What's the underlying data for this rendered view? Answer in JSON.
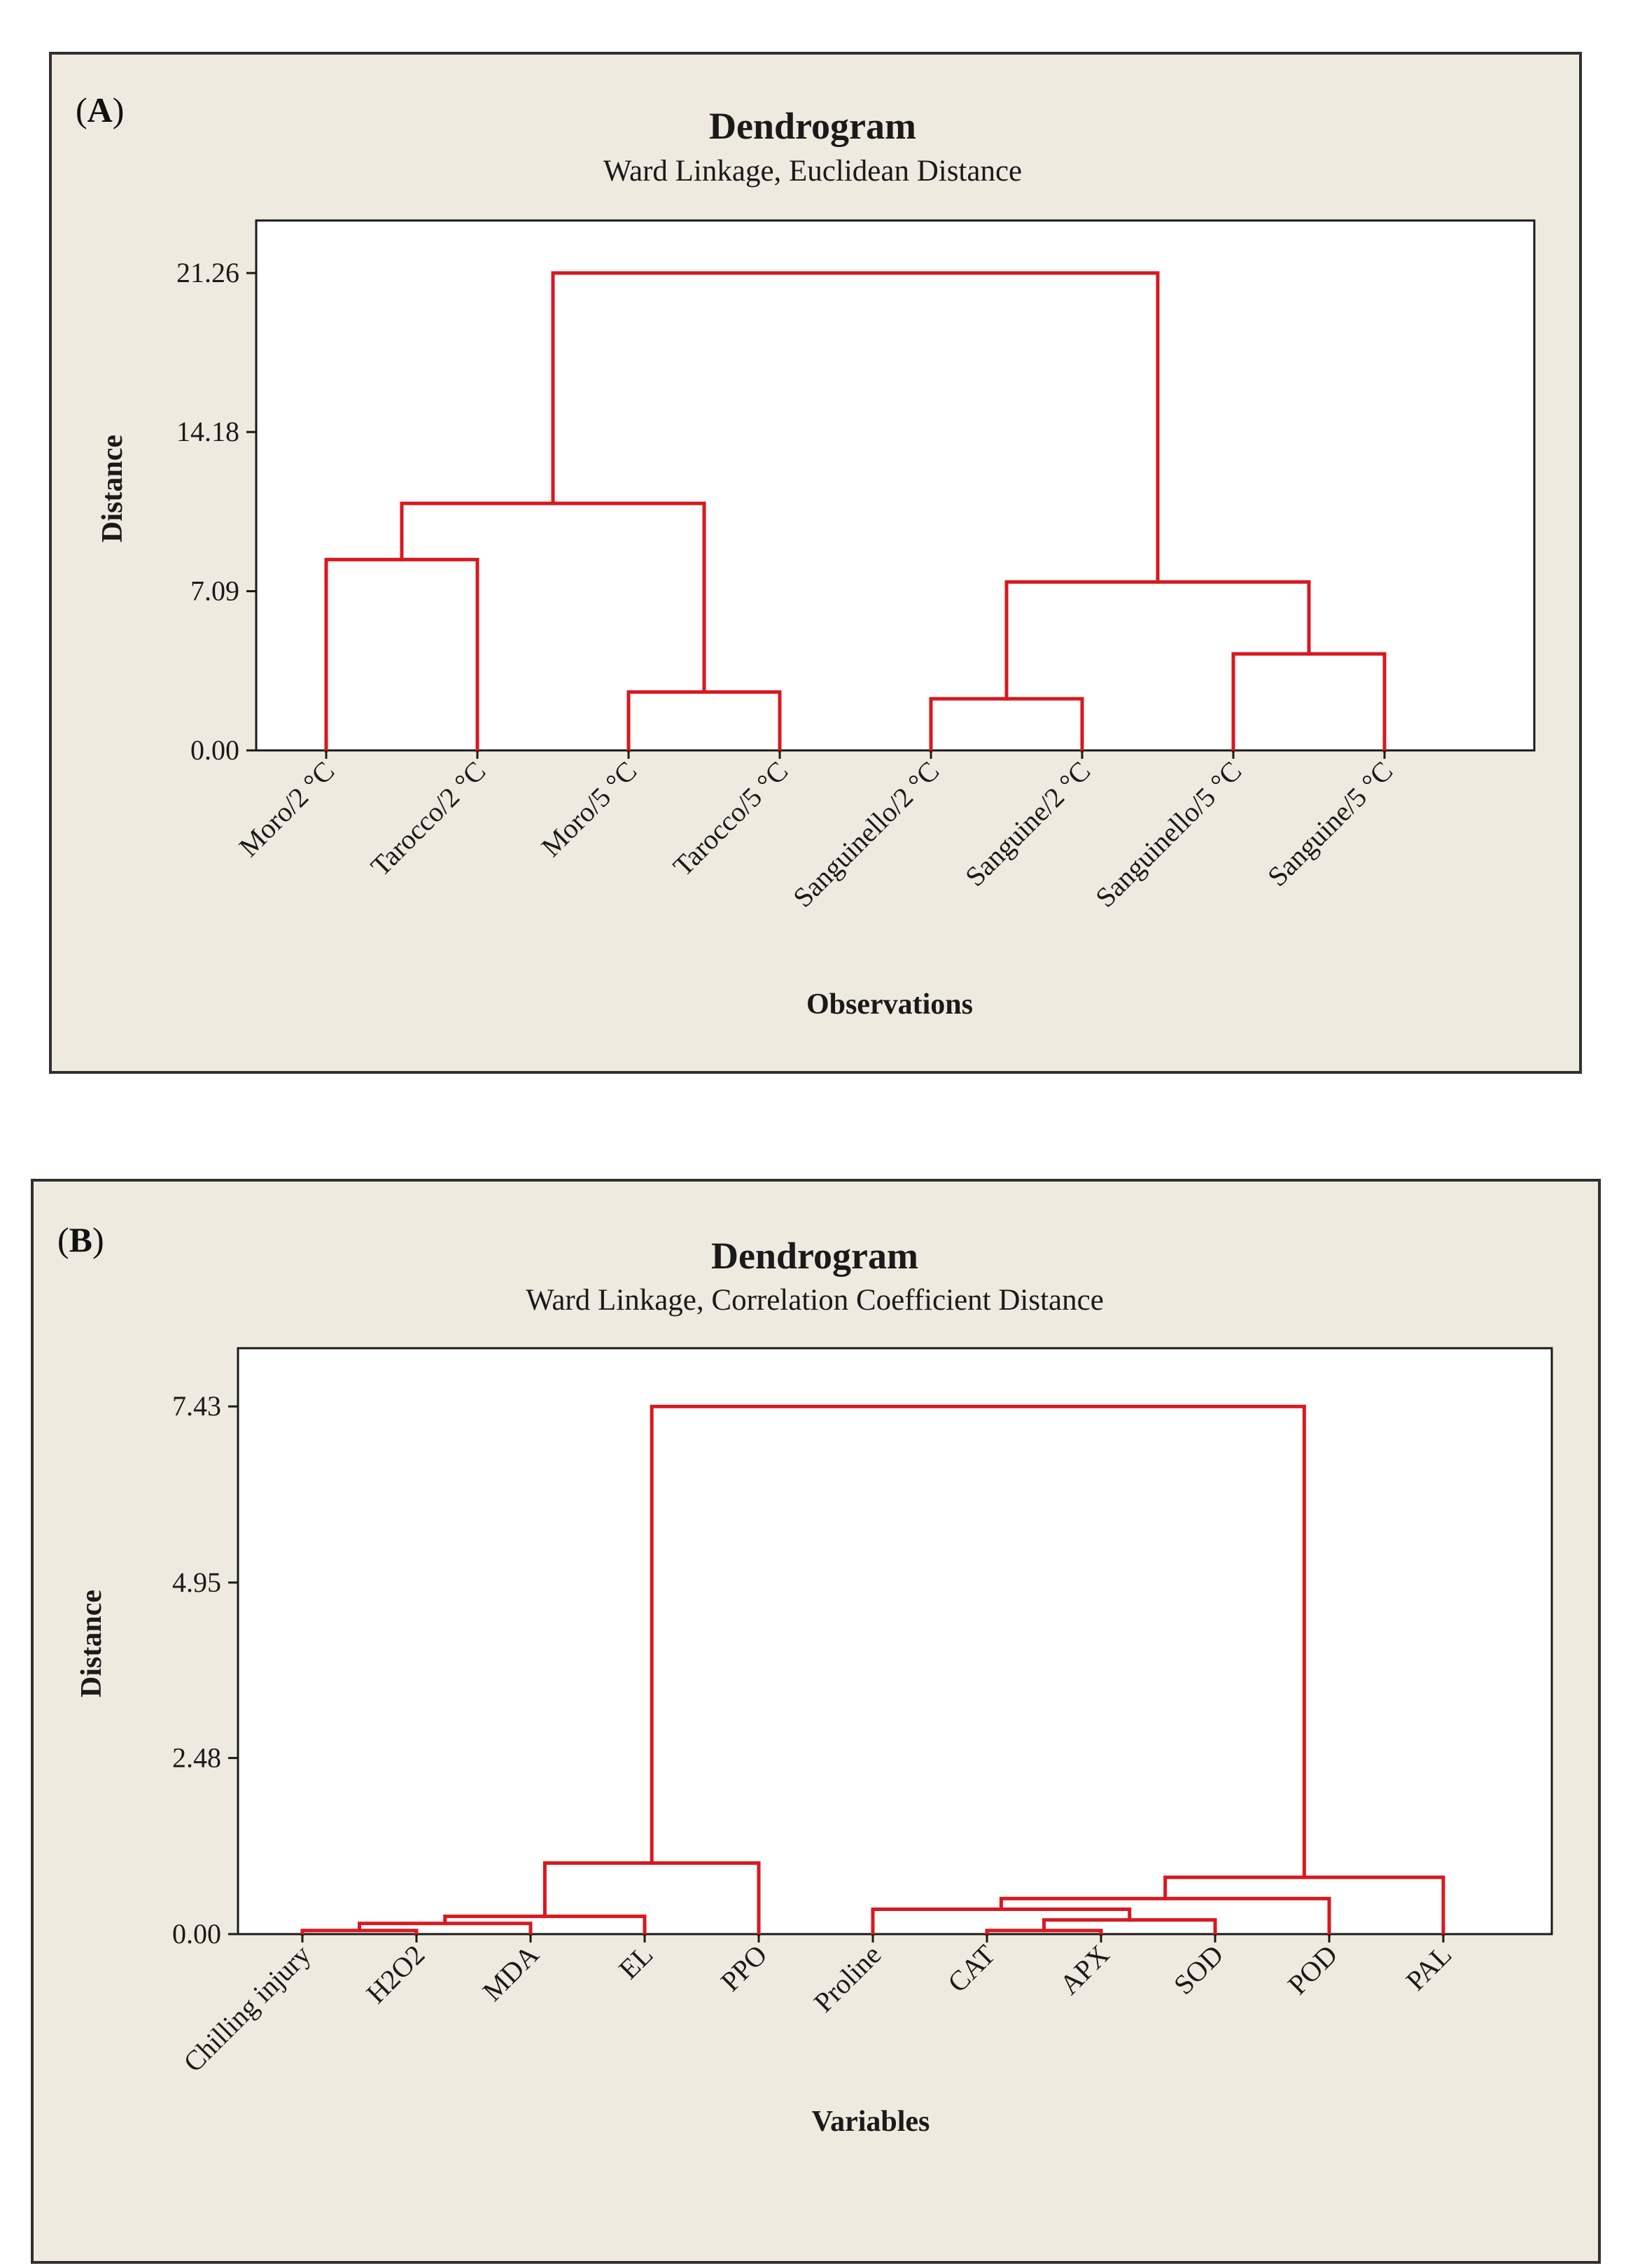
{
  "accent_color": "#d71920",
  "panels": [
    {
      "label_open": "(",
      "label_letter": "A",
      "label_close": ")",
      "chart_data": {
        "type": "dendrogram",
        "title": "Dendrogram",
        "subtitle": "Ward Linkage, Euclidean Distance",
        "xlabel": "Observations",
        "ylabel": "Distance",
        "yticks": [
          "0.00",
          "7.09",
          "14.18",
          "21.26"
        ],
        "ytick_values": [
          0,
          7.09,
          14.18,
          21.26
        ],
        "ylim": [
          0,
          23.6
        ],
        "leaves": [
          "Moro/2 °C",
          "Tarocco/2 °C",
          "Moro/5 °C",
          "Tarocco/5 °C",
          "Sanguinello/2 °C",
          "Sanguine/2 °C",
          "Sanguinello/5 °C",
          "Sanguine/5 °C"
        ],
        "merges": [
          {
            "left": 0,
            "right": 1,
            "height": 8.5
          },
          {
            "left": 2,
            "right": 3,
            "height": 2.6
          },
          {
            "left": 4,
            "right": 5,
            "height": 2.3
          },
          {
            "left": 6,
            "right": 7,
            "height": 4.3
          },
          {
            "left": 8,
            "right": 9,
            "height": 11.0
          },
          {
            "left": 10,
            "right": 11,
            "height": 7.5
          },
          {
            "left": 12,
            "right": 13,
            "height": 21.26
          }
        ]
      }
    },
    {
      "label_open": "(",
      "label_letter": "B",
      "label_close": ")",
      "chart_data": {
        "type": "dendrogram",
        "title": "Dendrogram",
        "subtitle": "Ward Linkage, Correlation Coefficient Distance",
        "xlabel": "Variables",
        "ylabel": "Distance",
        "yticks": [
          "0.00",
          "2.48",
          "4.95",
          "7.43"
        ],
        "ytick_values": [
          0,
          2.48,
          4.95,
          7.43
        ],
        "ylim": [
          0,
          8.25
        ],
        "leaves": [
          "Chilling injury",
          "H2O2",
          "MDA",
          "EL",
          "PPO",
          "Proline",
          "CAT",
          "APX",
          "SOD",
          "POD",
          "PAL"
        ],
        "merges": [
          {
            "left": 0,
            "right": 1,
            "height": 0.05
          },
          {
            "left": 6,
            "right": 7,
            "height": 0.05
          },
          {
            "left": 11,
            "right": 2,
            "height": 0.15
          },
          {
            "left": 13,
            "right": 3,
            "height": 0.25
          },
          {
            "left": 12,
            "right": 8,
            "height": 0.2
          },
          {
            "left": 5,
            "right": 15,
            "height": 0.35
          },
          {
            "left": 14,
            "right": 4,
            "height": 1.0
          },
          {
            "left": 16,
            "right": 9,
            "height": 0.5
          },
          {
            "left": 18,
            "right": 10,
            "height": 0.8
          },
          {
            "left": 17,
            "right": 19,
            "height": 7.43
          }
        ]
      }
    }
  ]
}
